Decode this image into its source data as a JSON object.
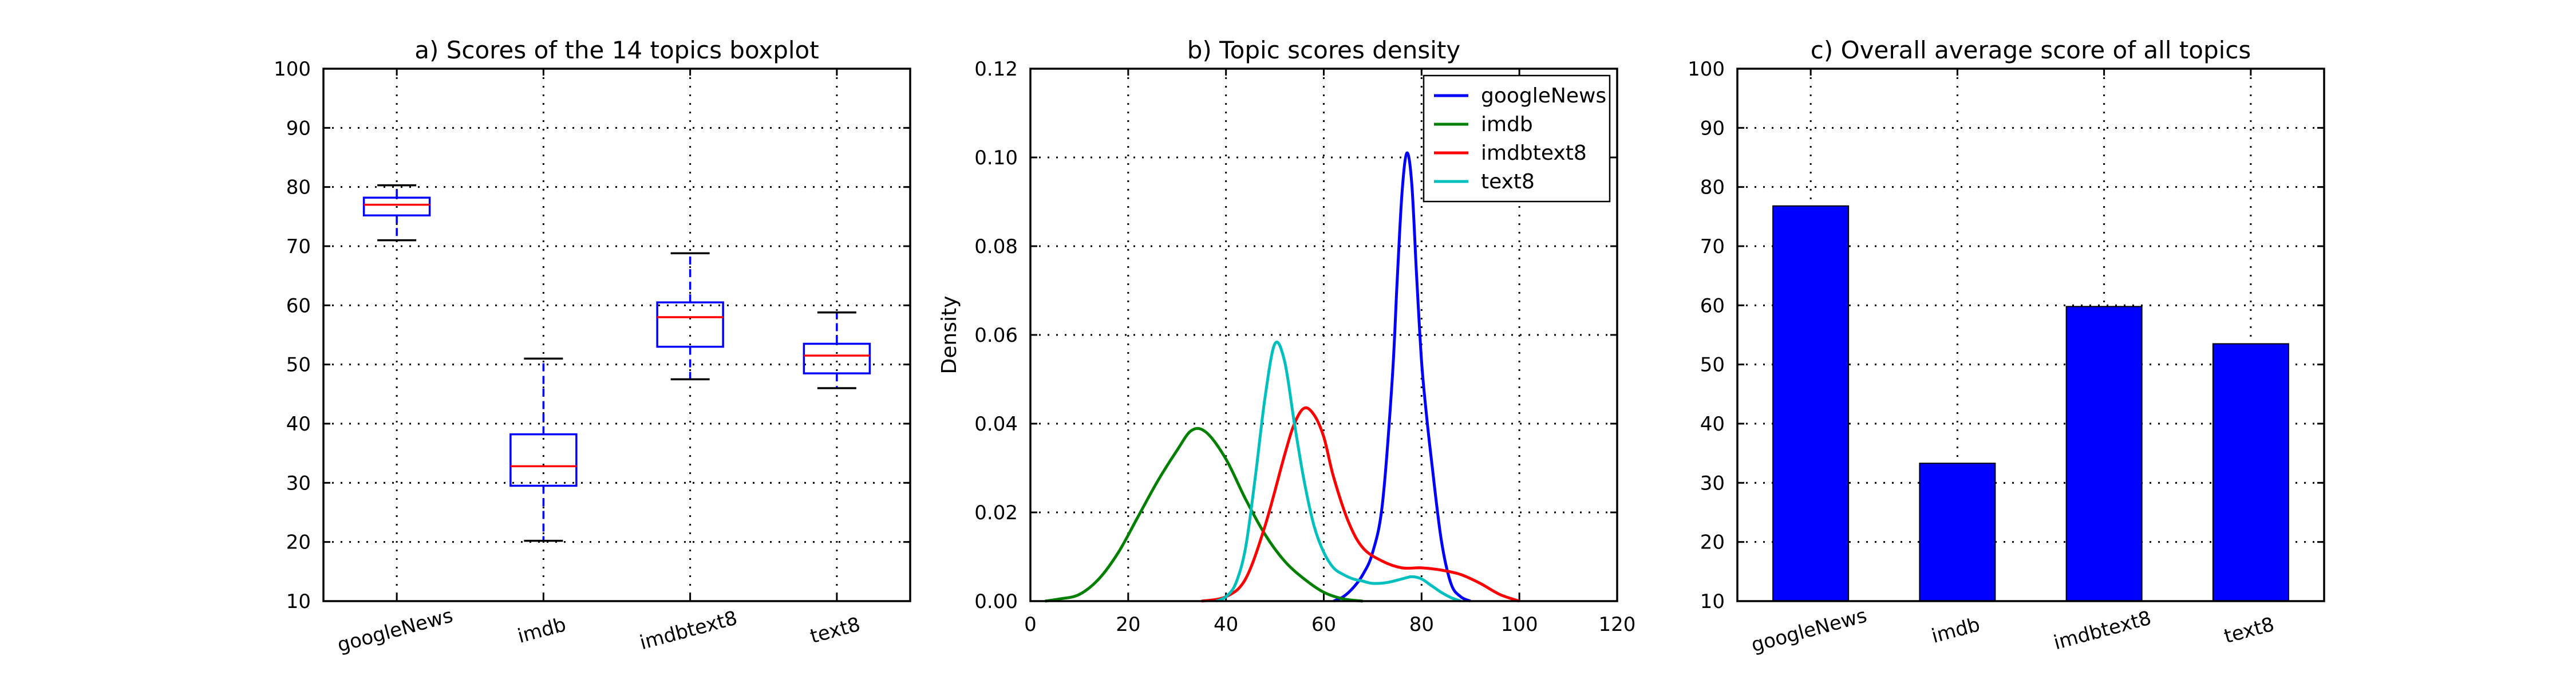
{
  "colors": {
    "googleNews": "#0000ff",
    "imdb": "#008000",
    "imdbtext8": "#ff0000",
    "text8": "#00bfbf",
    "box": "#0000ff",
    "median": "#ff0000",
    "bar": "#0000ff"
  },
  "chart_data": [
    {
      "type": "boxplot",
      "title": "a)   Scores of the 14 topics boxplot",
      "xlabel": "",
      "ylabel": "",
      "ylim": [
        10,
        100
      ],
      "yticks": [
        10,
        20,
        30,
        40,
        50,
        60,
        70,
        80,
        90,
        100
      ],
      "grid": true,
      "categories": [
        "googleNews",
        "imdb",
        "imdbtext8",
        "text8"
      ],
      "boxes": [
        {
          "name": "googleNews",
          "whisker_low": 71,
          "q1": 75.2,
          "median": 77,
          "q3": 78.2,
          "whisker_high": 80.3
        },
        {
          "name": "imdb",
          "whisker_low": 20.2,
          "q1": 29.5,
          "median": 32.8,
          "q3": 38.2,
          "whisker_high": 51
        },
        {
          "name": "imdbtext8",
          "whisker_low": 47.5,
          "q1": 53,
          "median": 58,
          "q3": 60.5,
          "whisker_high": 68.8
        },
        {
          "name": "text8",
          "whisker_low": 46,
          "q1": 48.5,
          "median": 51.5,
          "q3": 53.5,
          "whisker_high": 58.8
        }
      ]
    },
    {
      "type": "line",
      "title": "b)   Topic scores density",
      "xlabel": "",
      "ylabel": "Density",
      "xlim": [
        0,
        120
      ],
      "ylim": [
        0,
        0.12
      ],
      "xticks": [
        0,
        20,
        40,
        60,
        80,
        100,
        120
      ],
      "yticks": [
        "0.00",
        "0.02",
        "0.04",
        "0.06",
        "0.08",
        "0.10",
        "0.12"
      ],
      "grid": true,
      "legend": "top-right",
      "series": [
        {
          "name": "googleNews",
          "color": "#0000ff",
          "x": [
            62,
            64,
            66,
            68,
            70,
            72,
            74,
            75,
            76,
            77,
            78,
            79,
            80,
            81,
            82,
            84,
            86,
            88,
            90
          ],
          "y": [
            0,
            0.001,
            0.003,
            0.006,
            0.011,
            0.022,
            0.05,
            0.072,
            0.092,
            0.101,
            0.094,
            0.073,
            0.054,
            0.042,
            0.032,
            0.014,
            0.004,
            0.001,
            0
          ]
        },
        {
          "name": "imdb",
          "color": "#008000",
          "x": [
            3,
            6,
            10,
            14,
            18,
            22,
            26,
            30,
            33,
            36,
            40,
            44,
            48,
            52,
            56,
            60,
            64,
            68
          ],
          "y": [
            0,
            0.0005,
            0.0015,
            0.005,
            0.011,
            0.019,
            0.027,
            0.034,
            0.0385,
            0.038,
            0.032,
            0.023,
            0.015,
            0.009,
            0.005,
            0.002,
            0.0005,
            0
          ]
        },
        {
          "name": "imdbtext8",
          "color": "#ff0000",
          "x": [
            35,
            40,
            44,
            48,
            52,
            54,
            56,
            58,
            60,
            62,
            65,
            68,
            72,
            76,
            80,
            84,
            88,
            92,
            96,
            100
          ],
          "y": [
            0,
            0.001,
            0.005,
            0.017,
            0.033,
            0.04,
            0.0435,
            0.042,
            0.037,
            0.028,
            0.018,
            0.012,
            0.009,
            0.0075,
            0.0075,
            0.007,
            0.006,
            0.004,
            0.0015,
            0
          ]
        },
        {
          "name": "text8",
          "color": "#00bfbf",
          "x": [
            38,
            40,
            42,
            44,
            46,
            48,
            50,
            52,
            54,
            56,
            58,
            60,
            62,
            64,
            66,
            68,
            70,
            73,
            76,
            78,
            80,
            82,
            84,
            86,
            88
          ],
          "y": [
            0,
            0.001,
            0.004,
            0.012,
            0.028,
            0.046,
            0.058,
            0.054,
            0.04,
            0.027,
            0.017,
            0.011,
            0.0075,
            0.006,
            0.005,
            0.0045,
            0.004,
            0.0042,
            0.005,
            0.0055,
            0.005,
            0.0035,
            0.002,
            0.0008,
            0
          ]
        }
      ]
    },
    {
      "type": "bar",
      "title": "c)   Overall average score of all topics",
      "xlabel": "",
      "ylabel": "",
      "ylim": [
        10,
        100
      ],
      "yticks": [
        10,
        20,
        30,
        40,
        50,
        60,
        70,
        80,
        90,
        100
      ],
      "grid": true,
      "categories": [
        "googleNews",
        "imdb",
        "imdbtext8",
        "text8"
      ],
      "values": [
        76.8,
        33.3,
        59.8,
        53.5
      ],
      "color": "#0000ff"
    }
  ]
}
